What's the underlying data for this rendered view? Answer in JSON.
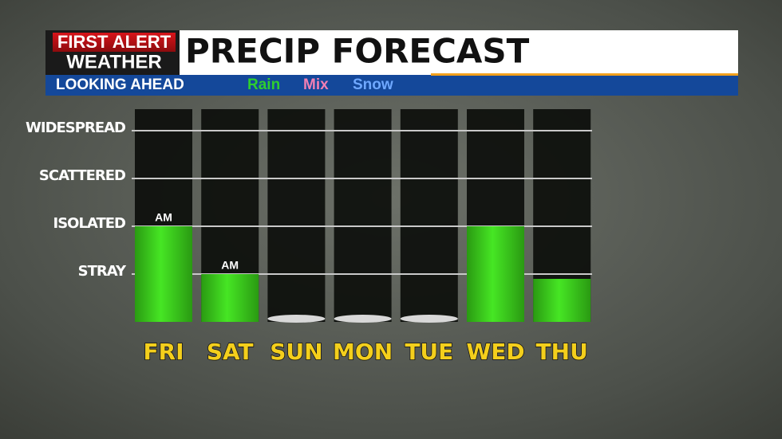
{
  "brand": {
    "line1": "FIRST ALERT",
    "line2": "WEATHER"
  },
  "chart_data": {
    "type": "bar",
    "title": "PRECIP FORECAST",
    "subtitle": "LOOKING AHEAD",
    "legend": [
      {
        "name": "Rain",
        "color": "#2ecf2e"
      },
      {
        "name": "Mix",
        "color": "#f27fb4"
      },
      {
        "name": "Snow",
        "color": "#6fa8ff"
      }
    ],
    "categories": [
      "FRI",
      "SAT",
      "SUN",
      "MON",
      "TUE",
      "WED",
      "THU"
    ],
    "values": [
      2,
      1,
      0,
      0,
      0,
      2,
      0.9
    ],
    "annotations": [
      "AM",
      "AM",
      null,
      null,
      null,
      null,
      null
    ],
    "color": "#3fd11f",
    "ylim": [
      0,
      4.4
    ],
    "yticks": [
      {
        "value": 1,
        "label": "STRAY"
      },
      {
        "value": 2,
        "label": "ISOLATED"
      },
      {
        "value": 3,
        "label": "SCATTERED"
      },
      {
        "value": 4,
        "label": "WIDESPREAD"
      }
    ],
    "grid": true
  }
}
